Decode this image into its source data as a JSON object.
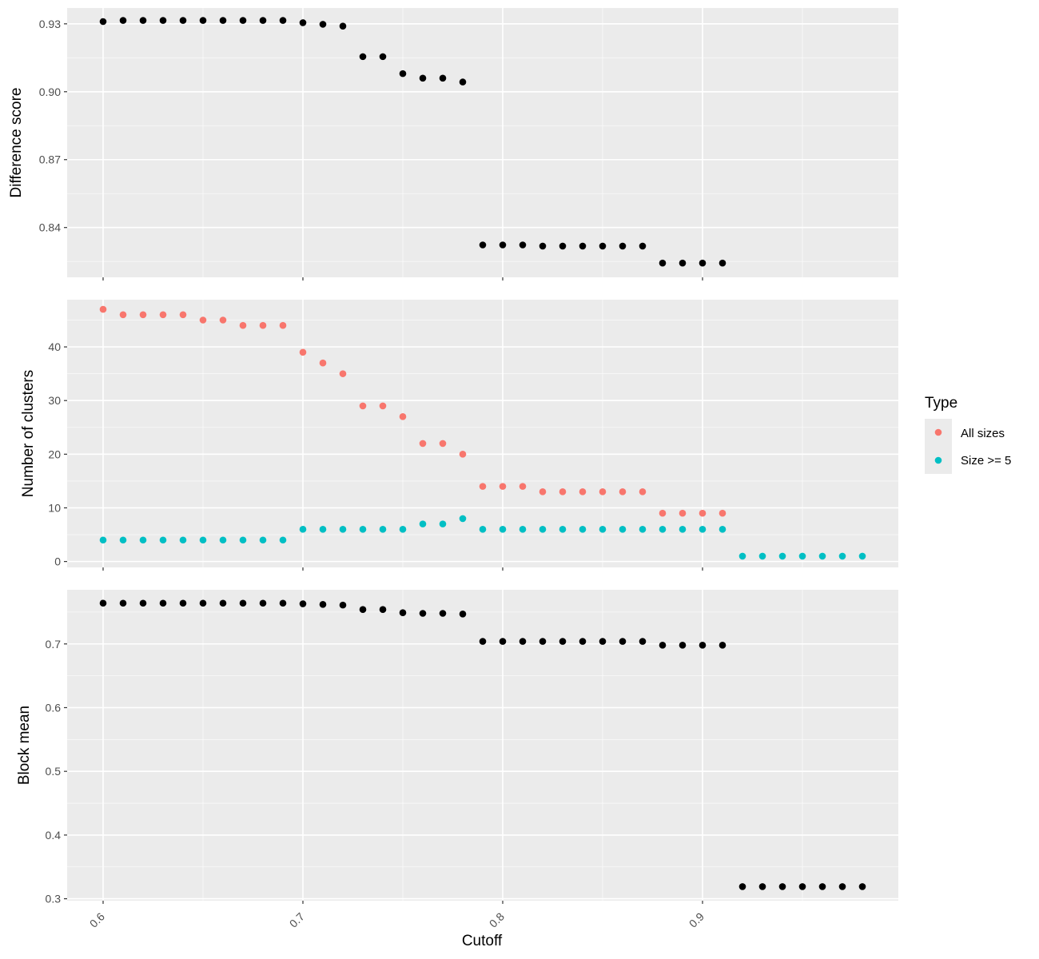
{
  "colors": {
    "panel_bg": "#ebebeb",
    "grid_major": "#ffffff",
    "tick": "#333333",
    "all_sizes": "#f8766d",
    "size_ge_5": "#00bfc4",
    "points": "#000000"
  },
  "chart_data": {
    "type": "scatter",
    "xlabel": "Cutoff",
    "x_ticks": [
      "0.6",
      "0.7",
      "0.8",
      "0.9"
    ],
    "x_tick_values": [
      0.6,
      0.7,
      0.8,
      0.9
    ],
    "xlim": [
      0.582,
      0.998
    ],
    "x": [
      0.6,
      0.61,
      0.62,
      0.63,
      0.64,
      0.65,
      0.66,
      0.67,
      0.68,
      0.69,
      0.7,
      0.71,
      0.72,
      0.73,
      0.74,
      0.75,
      0.76,
      0.77,
      0.78,
      0.79,
      0.8,
      0.81,
      0.82,
      0.83,
      0.84,
      0.85,
      0.86,
      0.87,
      0.88,
      0.89,
      0.9,
      0.91,
      0.92,
      0.93,
      0.94,
      0.95,
      0.96,
      0.97,
      0.98
    ],
    "facets": [
      {
        "ylabel": "Difference score",
        "y_ticks": [
          "0.84",
          "0.87",
          "0.90",
          "0.93"
        ],
        "y_tick_values": [
          0.84,
          0.87,
          0.9,
          0.93
        ],
        "ylim": [
          0.818,
          0.937
        ],
        "series": [
          {
            "color": "#000000",
            "x": [
              0.6,
              0.61,
              0.62,
              0.63,
              0.64,
              0.65,
              0.66,
              0.67,
              0.68,
              0.69,
              0.7,
              0.71,
              0.72,
              0.73,
              0.74,
              0.75,
              0.76,
              0.77,
              0.78,
              0.79,
              0.8,
              0.81,
              0.82,
              0.83,
              0.84,
              0.85,
              0.86,
              0.87,
              0.88,
              0.89,
              0.9,
              0.91
            ],
            "values": [
              0.931,
              0.9315,
              0.9315,
              0.9315,
              0.9315,
              0.9315,
              0.9315,
              0.9315,
              0.9315,
              0.9315,
              0.9305,
              0.9298,
              0.929,
              0.9155,
              0.9155,
              0.908,
              0.906,
              0.906,
              0.9043,
              0.8323,
              0.8323,
              0.8323,
              0.8318,
              0.8318,
              0.8318,
              0.8318,
              0.8318,
              0.8318,
              0.8243,
              0.8243,
              0.8243,
              0.8243
            ]
          }
        ]
      },
      {
        "ylabel": "Number of clusters",
        "y_ticks": [
          "0",
          "10",
          "20",
          "30",
          "40"
        ],
        "y_tick_values": [
          0,
          10,
          20,
          30,
          40
        ],
        "ylim": [
          -1.1,
          48.8
        ],
        "series": [
          {
            "name": "All sizes",
            "color": "#f8766d",
            "x": [
              0.6,
              0.61,
              0.62,
              0.63,
              0.64,
              0.65,
              0.66,
              0.67,
              0.68,
              0.69,
              0.7,
              0.71,
              0.72,
              0.73,
              0.74,
              0.75,
              0.76,
              0.77,
              0.78,
              0.79,
              0.8,
              0.81,
              0.82,
              0.83,
              0.84,
              0.85,
              0.86,
              0.87,
              0.88,
              0.89,
              0.9,
              0.91
            ],
            "values": [
              47,
              46,
              46,
              46,
              46,
              45,
              45,
              44,
              44,
              44,
              39,
              37,
              35,
              29,
              29,
              27,
              22,
              22,
              20,
              14,
              14,
              14,
              13,
              13,
              13,
              13,
              13,
              13,
              9,
              9,
              9,
              9
            ]
          },
          {
            "name": "Size >= 5",
            "color": "#00bfc4",
            "x": [
              0.6,
              0.61,
              0.62,
              0.63,
              0.64,
              0.65,
              0.66,
              0.67,
              0.68,
              0.69,
              0.7,
              0.71,
              0.72,
              0.73,
              0.74,
              0.75,
              0.76,
              0.77,
              0.78,
              0.79,
              0.8,
              0.81,
              0.82,
              0.83,
              0.84,
              0.85,
              0.86,
              0.87,
              0.88,
              0.89,
              0.9,
              0.91,
              0.92,
              0.93,
              0.94,
              0.95,
              0.96,
              0.97,
              0.98
            ],
            "values": [
              4,
              4,
              4,
              4,
              4,
              4,
              4,
              4,
              4,
              4,
              6,
              6,
              6,
              6,
              6,
              6,
              7,
              7,
              8,
              6,
              6,
              6,
              6,
              6,
              6,
              6,
              6,
              6,
              6,
              6,
              6,
              6,
              1,
              1,
              1,
              1,
              1,
              1,
              1
            ]
          }
        ]
      },
      {
        "ylabel": "Block mean",
        "y_ticks": [
          "0.3",
          "0.4",
          "0.5",
          "0.6",
          "0.7"
        ],
        "y_tick_values": [
          0.3,
          0.4,
          0.5,
          0.6,
          0.7
        ],
        "ylim": [
          0.297,
          0.785
        ],
        "series": [
          {
            "color": "#000000",
            "x": [
              0.6,
              0.61,
              0.62,
              0.63,
              0.64,
              0.65,
              0.66,
              0.67,
              0.68,
              0.69,
              0.7,
              0.71,
              0.72,
              0.73,
              0.74,
              0.75,
              0.76,
              0.77,
              0.78,
              0.79,
              0.8,
              0.81,
              0.82,
              0.83,
              0.84,
              0.85,
              0.86,
              0.87,
              0.88,
              0.89,
              0.9,
              0.91,
              0.92,
              0.93,
              0.94,
              0.95,
              0.96,
              0.97,
              0.98
            ],
            "values": [
              0.764,
              0.764,
              0.764,
              0.764,
              0.764,
              0.764,
              0.764,
              0.764,
              0.764,
              0.764,
              0.763,
              0.762,
              0.761,
              0.754,
              0.754,
              0.749,
              0.748,
              0.748,
              0.747,
              0.704,
              0.704,
              0.704,
              0.704,
              0.704,
              0.704,
              0.704,
              0.704,
              0.704,
              0.698,
              0.698,
              0.698,
              0.698,
              0.319,
              0.319,
              0.319,
              0.319,
              0.319,
              0.319,
              0.319
            ]
          }
        ]
      }
    ],
    "legend": {
      "title": "Type",
      "placement": "right",
      "entries": [
        {
          "label": "All sizes",
          "color": "#f8766d"
        },
        {
          "label": "Size >= 5",
          "color": "#00bfc4"
        }
      ]
    }
  }
}
